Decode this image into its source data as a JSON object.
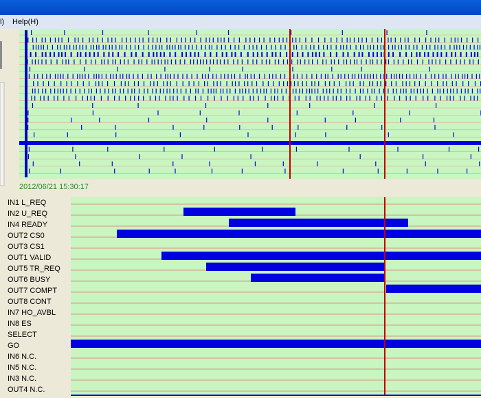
{
  "menu": {
    "items": [
      "l)",
      "Help(H)"
    ]
  },
  "timestamp": "2012/06/21 15:30:17",
  "signals": [
    "IN1 L_REQ",
    "IN2 U_REQ",
    "IN4 READY",
    "OUT2 CS0",
    "OUT3 CS1",
    "OUT1 VALID",
    "OUT5 TR_REQ",
    "OUT6 BUSY",
    "OUT7 COMPT",
    "OUT8 CONT",
    "IN7 HO_AVBL",
    "IN8 ES",
    "SELECT",
    "GO",
    "IN6 N.C.",
    "IN5 N.C.",
    "IN3 N.C.",
    "OUT4 N.C."
  ]
}
